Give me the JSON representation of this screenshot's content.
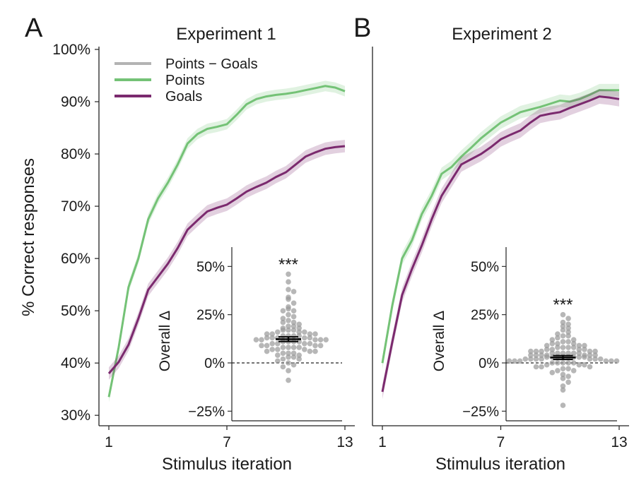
{
  "ylabel": "% Correct responses",
  "legend": [
    {
      "label": "Points − Goals",
      "color": "#b3b3b3"
    },
    {
      "label": "Points",
      "color": "#74c276"
    },
    {
      "label": "Goals",
      "color": "#7b2a6e"
    }
  ],
  "chart_data": [
    {
      "type": "line",
      "panel": "A",
      "title": "Experiment 1",
      "xlabel": "Stimulus iteration",
      "ylabel": "% Correct responses",
      "xlim": [
        1,
        13
      ],
      "ylim": [
        0.28,
        1.0
      ],
      "xticks": [
        1,
        7,
        13
      ],
      "xtick_labels": [
        "1",
        "7",
        "13"
      ],
      "yticks": [
        0.3,
        0.4,
        0.5,
        0.6,
        0.7,
        0.8,
        0.9,
        1.0
      ],
      "ytick_labels": [
        "30%",
        "40%",
        "50%",
        "60%",
        "70%",
        "80%",
        "90%",
        "100%"
      ],
      "x": [
        1,
        1.5,
        2,
        2.5,
        3,
        3.5,
        4,
        4.5,
        5,
        5.5,
        6,
        6.5,
        7,
        7.5,
        8,
        8.5,
        9,
        9.5,
        10,
        10.5,
        11,
        11.5,
        12,
        12.5,
        13
      ],
      "series": [
        {
          "name": "Points",
          "color": "#74c276",
          "values": [
            0.335,
            0.43,
            0.545,
            0.6,
            0.675,
            0.715,
            0.745,
            0.78,
            0.82,
            0.838,
            0.848,
            0.852,
            0.857,
            0.875,
            0.895,
            0.905,
            0.91,
            0.913,
            0.915,
            0.918,
            0.922,
            0.926,
            0.93,
            0.927,
            0.92
          ],
          "ci": 0.01
        },
        {
          "name": "Goals",
          "color": "#7b2a6e",
          "values": [
            0.38,
            0.402,
            0.435,
            0.485,
            0.54,
            0.565,
            0.59,
            0.62,
            0.655,
            0.673,
            0.69,
            0.697,
            0.703,
            0.715,
            0.728,
            0.737,
            0.745,
            0.756,
            0.765,
            0.78,
            0.795,
            0.803,
            0.81,
            0.813,
            0.815
          ],
          "ci": 0.012
        }
      ],
      "inset": {
        "ylabel": "Overall Δ",
        "ylim": [
          -0.3,
          0.6
        ],
        "yticks": [
          -0.25,
          0,
          0.25,
          0.5
        ],
        "ytick_labels": [
          "−25%",
          "0%",
          "25%",
          "50%"
        ],
        "mean": 0.123,
        "sem": 0.012,
        "annotation": "***",
        "points": [
          0.46,
          0.42,
          0.38,
          0.37,
          0.34,
          0.33,
          0.31,
          0.29,
          0.28,
          0.27,
          0.27,
          0.25,
          0.24,
          0.23,
          0.22,
          0.21,
          0.21,
          0.2,
          0.19,
          0.19,
          0.18,
          0.18,
          0.17,
          0.17,
          0.17,
          0.16,
          0.16,
          0.16,
          0.15,
          0.15,
          0.15,
          0.15,
          0.14,
          0.14,
          0.14,
          0.14,
          0.13,
          0.13,
          0.13,
          0.13,
          0.13,
          0.12,
          0.12,
          0.12,
          0.12,
          0.12,
          0.11,
          0.11,
          0.11,
          0.11,
          0.1,
          0.1,
          0.1,
          0.1,
          0.09,
          0.09,
          0.09,
          0.09,
          0.08,
          0.08,
          0.08,
          0.08,
          0.07,
          0.07,
          0.07,
          0.06,
          0.06,
          0.06,
          0.05,
          0.05,
          0.05,
          0.04,
          0.04,
          0.03,
          0.03,
          0.02,
          0.02,
          0.01,
          0.0,
          -0.01,
          -0.02,
          -0.04,
          -0.09
        ]
      }
    },
    {
      "type": "line",
      "panel": "B",
      "title": "Experiment 2",
      "xlabel": "Stimulus iteration",
      "xlim": [
        1,
        13
      ],
      "ylim": [
        0.28,
        1.0
      ],
      "xticks": [
        1,
        7,
        13
      ],
      "xtick_labels": [
        "1",
        "7",
        "13"
      ],
      "x": [
        1,
        1.5,
        2,
        2.5,
        3,
        3.5,
        4,
        4.5,
        5,
        5.5,
        6,
        6.5,
        7,
        7.5,
        8,
        8.5,
        9,
        9.5,
        10,
        10.5,
        11,
        11.5,
        12,
        12.5,
        13
      ],
      "series": [
        {
          "name": "Points",
          "color": "#74c276",
          "values": [
            0.4,
            0.51,
            0.6,
            0.635,
            0.685,
            0.72,
            0.762,
            0.775,
            0.795,
            0.812,
            0.83,
            0.845,
            0.86,
            0.87,
            0.88,
            0.885,
            0.89,
            0.896,
            0.902,
            0.9,
            0.905,
            0.913,
            0.922,
            0.922,
            0.922
          ],
          "ci": 0.012
        },
        {
          "name": "Goals",
          "color": "#7b2a6e",
          "values": [
            0.345,
            0.44,
            0.53,
            0.58,
            0.625,
            0.675,
            0.72,
            0.75,
            0.78,
            0.79,
            0.8,
            0.813,
            0.828,
            0.837,
            0.845,
            0.86,
            0.873,
            0.877,
            0.88,
            0.888,
            0.895,
            0.902,
            0.91,
            0.908,
            0.905
          ],
          "ci": 0.014
        }
      ],
      "inset": {
        "ylabel": "Overall Δ",
        "ylim": [
          -0.3,
          0.6
        ],
        "yticks": [
          -0.25,
          0,
          0.25,
          0.5
        ],
        "ytick_labels": [
          "−25%",
          "0%",
          "25%",
          "50%"
        ],
        "mean": 0.028,
        "sem": 0.01,
        "annotation": "***",
        "points": [
          0.25,
          0.23,
          0.21,
          0.2,
          0.19,
          0.18,
          0.17,
          0.16,
          0.15,
          0.14,
          0.14,
          0.13,
          0.12,
          0.12,
          0.11,
          0.11,
          0.1,
          0.1,
          0.1,
          0.09,
          0.09,
          0.09,
          0.08,
          0.08,
          0.08,
          0.08,
          0.07,
          0.07,
          0.07,
          0.07,
          0.06,
          0.06,
          0.06,
          0.06,
          0.06,
          0.05,
          0.05,
          0.05,
          0.05,
          0.05,
          0.05,
          0.04,
          0.04,
          0.04,
          0.04,
          0.04,
          0.04,
          0.04,
          0.03,
          0.03,
          0.03,
          0.03,
          0.03,
          0.03,
          0.03,
          0.03,
          0.02,
          0.02,
          0.02,
          0.02,
          0.02,
          0.02,
          0.02,
          0.01,
          0.01,
          0.01,
          0.01,
          0.01,
          0.01,
          0.0,
          0.0,
          0.0,
          0.0,
          0.0,
          -0.01,
          -0.01,
          -0.01,
          -0.02,
          -0.02,
          -0.02,
          -0.03,
          -0.03,
          -0.04,
          -0.04,
          -0.05,
          -0.06,
          -0.07,
          -0.08,
          -0.1,
          -0.12,
          -0.14,
          -0.22
        ]
      }
    }
  ]
}
